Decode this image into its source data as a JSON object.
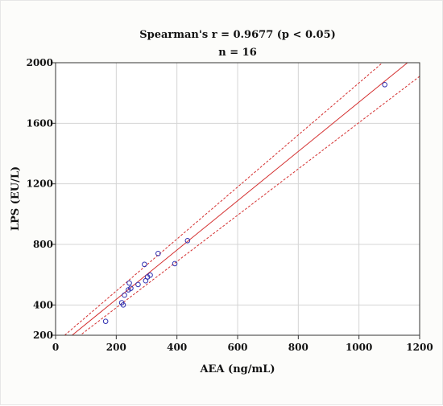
{
  "chart_data": {
    "type": "scatter",
    "title": "Spearman's r = 0.9677 (p < 0.05)",
    "subtitle": "n = 16",
    "xlabel": "AEA (ng/mL)",
    "ylabel": "LPS (EU/L)",
    "xlim": [
      0,
      1200
    ],
    "ylim": [
      200,
      2000
    ],
    "xticks": [
      0,
      200,
      400,
      600,
      800,
      1000,
      1200
    ],
    "yticks": [
      200,
      400,
      800,
      1200,
      1600,
      2000
    ],
    "grid": true,
    "points": [
      {
        "x": 165,
        "y": 292
      },
      {
        "x": 218,
        "y": 415
      },
      {
        "x": 223,
        "y": 400
      },
      {
        "x": 227,
        "y": 465
      },
      {
        "x": 240,
        "y": 500
      },
      {
        "x": 243,
        "y": 545
      },
      {
        "x": 248,
        "y": 510
      },
      {
        "x": 272,
        "y": 535
      },
      {
        "x": 293,
        "y": 668
      },
      {
        "x": 297,
        "y": 560
      },
      {
        "x": 303,
        "y": 585
      },
      {
        "x": 312,
        "y": 597
      },
      {
        "x": 338,
        "y": 740
      },
      {
        "x": 393,
        "y": 673
      },
      {
        "x": 435,
        "y": 825
      },
      {
        "x": 1085,
        "y": 1855
      }
    ],
    "fit_line": {
      "x": [
        33,
        1160
      ],
      "y": [
        165,
        2000
      ]
    },
    "confidence_upper": {
      "x": [
        30,
        1130
      ],
      "y": [
        200,
        2090
      ]
    },
    "confidence_lower": {
      "x": [
        55,
        1200
      ],
      "y": [
        160,
        1910
      ]
    },
    "colors": {
      "points": "#3030b0",
      "fit": "#d43030",
      "confidence": "#d43030",
      "grid": "#d4d4d4",
      "axis": "#333333"
    }
  }
}
